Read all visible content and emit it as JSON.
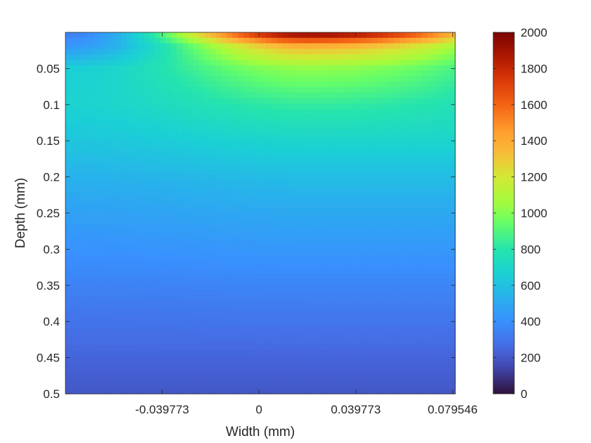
{
  "chart_data": {
    "type": "heatmap",
    "xlabel": "Width (mm)",
    "ylabel": "Depth (mm)",
    "xlim": [
      -0.0795,
      0.0806
    ],
    "ylim": [
      0.0,
      0.5
    ],
    "y_reversed": true,
    "x_ticks": [
      -0.039773,
      0,
      0.039773,
      0.079546
    ],
    "x_tick_labels": [
      "-0.039773",
      "0",
      "0.039773",
      "0.079546"
    ],
    "y_ticks": [
      0.05,
      0.1,
      0.15,
      0.2,
      0.25,
      0.3,
      0.35,
      0.4,
      0.45,
      0.5
    ],
    "y_tick_labels": [
      "0.05",
      "0.1",
      "0.15",
      "0.2",
      "0.25",
      "0.3",
      "0.35",
      "0.4",
      "0.45",
      "0.5"
    ],
    "colorbar": {
      "colormap": "turbo",
      "clim": [
        0,
        2000
      ],
      "ticks": [
        0,
        200,
        400,
        600,
        800,
        1000,
        1200,
        1400,
        1600,
        1800,
        2000
      ],
      "tick_labels": [
        "0",
        "200",
        "400",
        "600",
        "800",
        "1000",
        "1200",
        "1400",
        "1600",
        "1800",
        "2000"
      ]
    },
    "field_profile": {
      "hot_spot_width_mm": 0.02,
      "hot_spot_peak": 2000,
      "depth_mm": [
        0.0,
        0.02,
        0.05,
        0.1,
        0.15,
        0.2,
        0.25,
        0.3,
        0.35,
        0.4,
        0.45,
        0.5
      ],
      "value_under_hot_spot": [
        2000,
        1350,
        1020,
        830,
        690,
        580,
        500,
        430,
        360,
        300,
        240,
        200
      ],
      "value_at_left_edge": [
        330,
        440,
        660,
        680,
        620,
        540,
        470,
        410,
        350,
        290,
        240,
        200
      ]
    },
    "grid": false
  }
}
